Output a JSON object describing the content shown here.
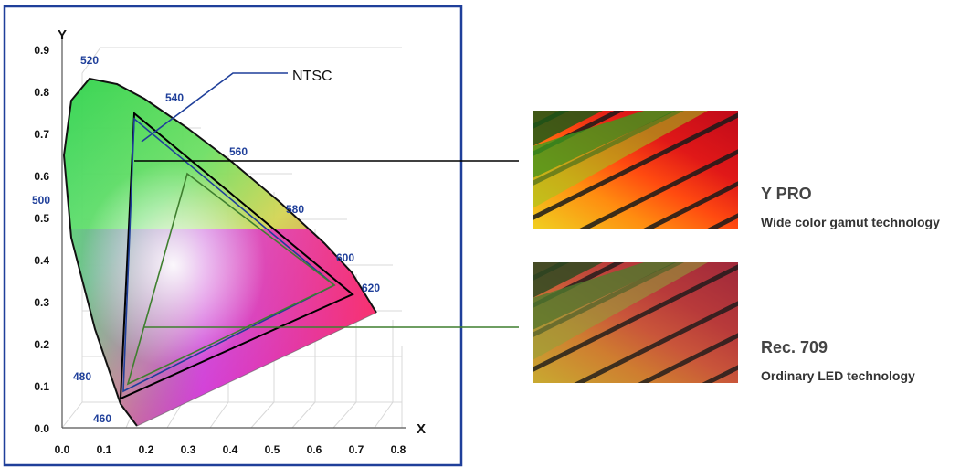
{
  "diagram": {
    "axes": {
      "x_label": "X",
      "y_label": "Y",
      "x_ticks": [
        "0.0",
        "0.1",
        "0.2",
        "0.3",
        "0.4",
        "0.5",
        "0.6",
        "0.7",
        "0.8"
      ],
      "y_ticks": [
        "0.0",
        "0.1",
        "0.2",
        "0.3",
        "0.4",
        "0.5",
        "0.6",
        "0.7",
        "0.8",
        "0.9"
      ]
    },
    "wavelengths": [
      "460",
      "480",
      "500",
      "520",
      "540",
      "560",
      "580",
      "600",
      "620"
    ],
    "ntsc_label": "NTSC",
    "colors": {
      "frame_border": "#1f3f9a",
      "wavelength_text": "#1f3f9a",
      "ypro_line": "#000000",
      "rec709_line": "#3f7f2f",
      "ntsc_line": "#1f3f9a"
    }
  },
  "products": [
    {
      "title": "Y PRO",
      "subtitle": "Wide color gamut technology"
    },
    {
      "title": "Rec. 709",
      "subtitle": "Ordinary LED technology"
    }
  ]
}
